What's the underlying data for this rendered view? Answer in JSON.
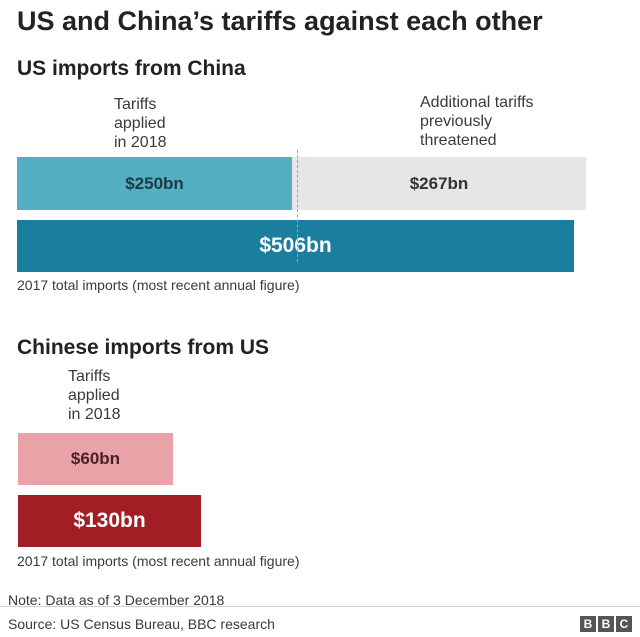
{
  "title": "US and China’s tariffs against each other",
  "chart_data": [
    {
      "type": "bar",
      "title": "US imports from China",
      "units": "US$ billion",
      "tariff_annotation": "Tariffs\napplied\nin 2018",
      "threat_annotation": "Additional tariffs\npreviously\nthreatened",
      "stacked_bar": [
        {
          "name": "Tariffs applied in 2018",
          "value": 250,
          "label": "$250bn",
          "color": "#54aec4"
        },
        {
          "name": "Additional tariffs previously threatened",
          "value": 267,
          "label": "$267bn",
          "color": "#e6e6e6"
        }
      ],
      "total_bar": {
        "name": "2017 total imports",
        "value": 506,
        "label": "$506bn",
        "color": "#1a7f9f"
      },
      "total_caption": "2017 total imports (most recent annual figure)"
    },
    {
      "type": "bar",
      "title": "Chinese imports from US",
      "units": "US$ billion",
      "tariff_annotation": "Tariffs\napplied\nin 2018",
      "stacked_bar": [
        {
          "name": "Tariffs applied in 2018",
          "value": 60,
          "label": "$60bn",
          "color": "#e8a3a8"
        }
      ],
      "total_bar": {
        "name": "2017 total imports",
        "value": 130,
        "label": "$130bn",
        "color": "#a21e24"
      },
      "total_caption": "2017 total imports (most recent annual figure)"
    }
  ],
  "note": "Note: Data as of 3 December 2018",
  "source": "Source: US Census Bureau, BBC research",
  "logo": [
    "B",
    "B",
    "C"
  ]
}
